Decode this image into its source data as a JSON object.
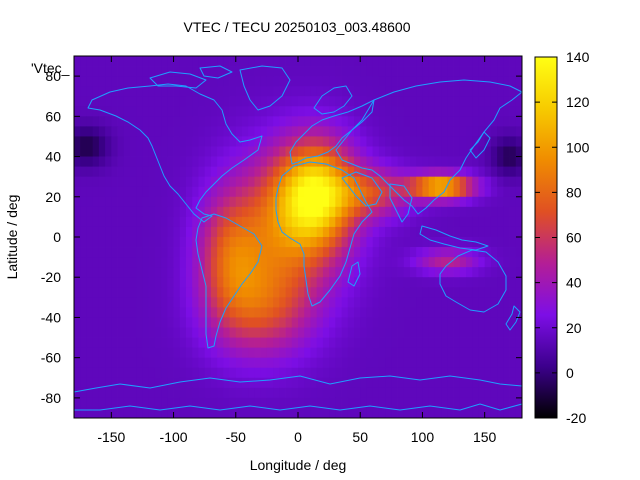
{
  "chart_data": {
    "type": "heatmap",
    "title": "VTEC / TECU 20250103_003.48600",
    "xlabel": "Longitude / deg",
    "ylabel": "Latitude / deg",
    "key_label": "'Vtec_",
    "xlim": [
      -180,
      180
    ],
    "ylim": [
      -90,
      90
    ],
    "x_ticks": [
      -150,
      -100,
      -50,
      0,
      50,
      100,
      150
    ],
    "y_ticks": [
      -80,
      -60,
      -40,
      -20,
      0,
      20,
      40,
      60,
      80
    ],
    "colorbar": {
      "range": [
        -20,
        140
      ],
      "ticks": [
        -20,
        0,
        20,
        40,
        60,
        80,
        100,
        120,
        140
      ],
      "palette": [
        "#000000",
        "#3c008c",
        "#7d0ee6",
        "#b41e96",
        "#e05023",
        "#f08c00",
        "#f7cb00",
        "#ffff14"
      ]
    },
    "background_level": 15,
    "features": [
      {
        "name": "africa-peak",
        "lon": 15,
        "lat": 22,
        "value": 110,
        "spread_lon": 30,
        "spread_lat": 25
      },
      {
        "name": "africa-atlantic-body",
        "lon": -10,
        "lat": 5,
        "value": 75,
        "spread_lon": 45,
        "spread_lat": 35
      },
      {
        "name": "south-atlantic",
        "lon": -30,
        "lat": -35,
        "value": 62,
        "spread_lon": 40,
        "spread_lat": 25
      },
      {
        "name": "south-america",
        "lon": -55,
        "lat": -10,
        "value": 60,
        "spread_lon": 25,
        "spread_lat": 30
      },
      {
        "name": "asia-crest",
        "lon": 115,
        "lat": 25,
        "value": 115,
        "spread_lon": 25,
        "spread_lat": 6
      },
      {
        "name": "arabia-band",
        "lon": 60,
        "lat": 22,
        "value": 60,
        "spread_lon": 30,
        "spread_lat": 12
      },
      {
        "name": "indonesia-band",
        "lon": 120,
        "lat": -12,
        "value": 50,
        "spread_lon": 25,
        "spread_lat": 6
      },
      {
        "name": "north-pacific-low",
        "lon": -170,
        "lat": 45,
        "value": -8,
        "spread_lon": 18,
        "spread_lat": 10
      },
      {
        "name": "north-east-pacific-low",
        "lon": 170,
        "lat": 40,
        "value": -6,
        "spread_lon": 15,
        "spread_lat": 10
      }
    ],
    "coastline_color": "#1ea0ff"
  }
}
